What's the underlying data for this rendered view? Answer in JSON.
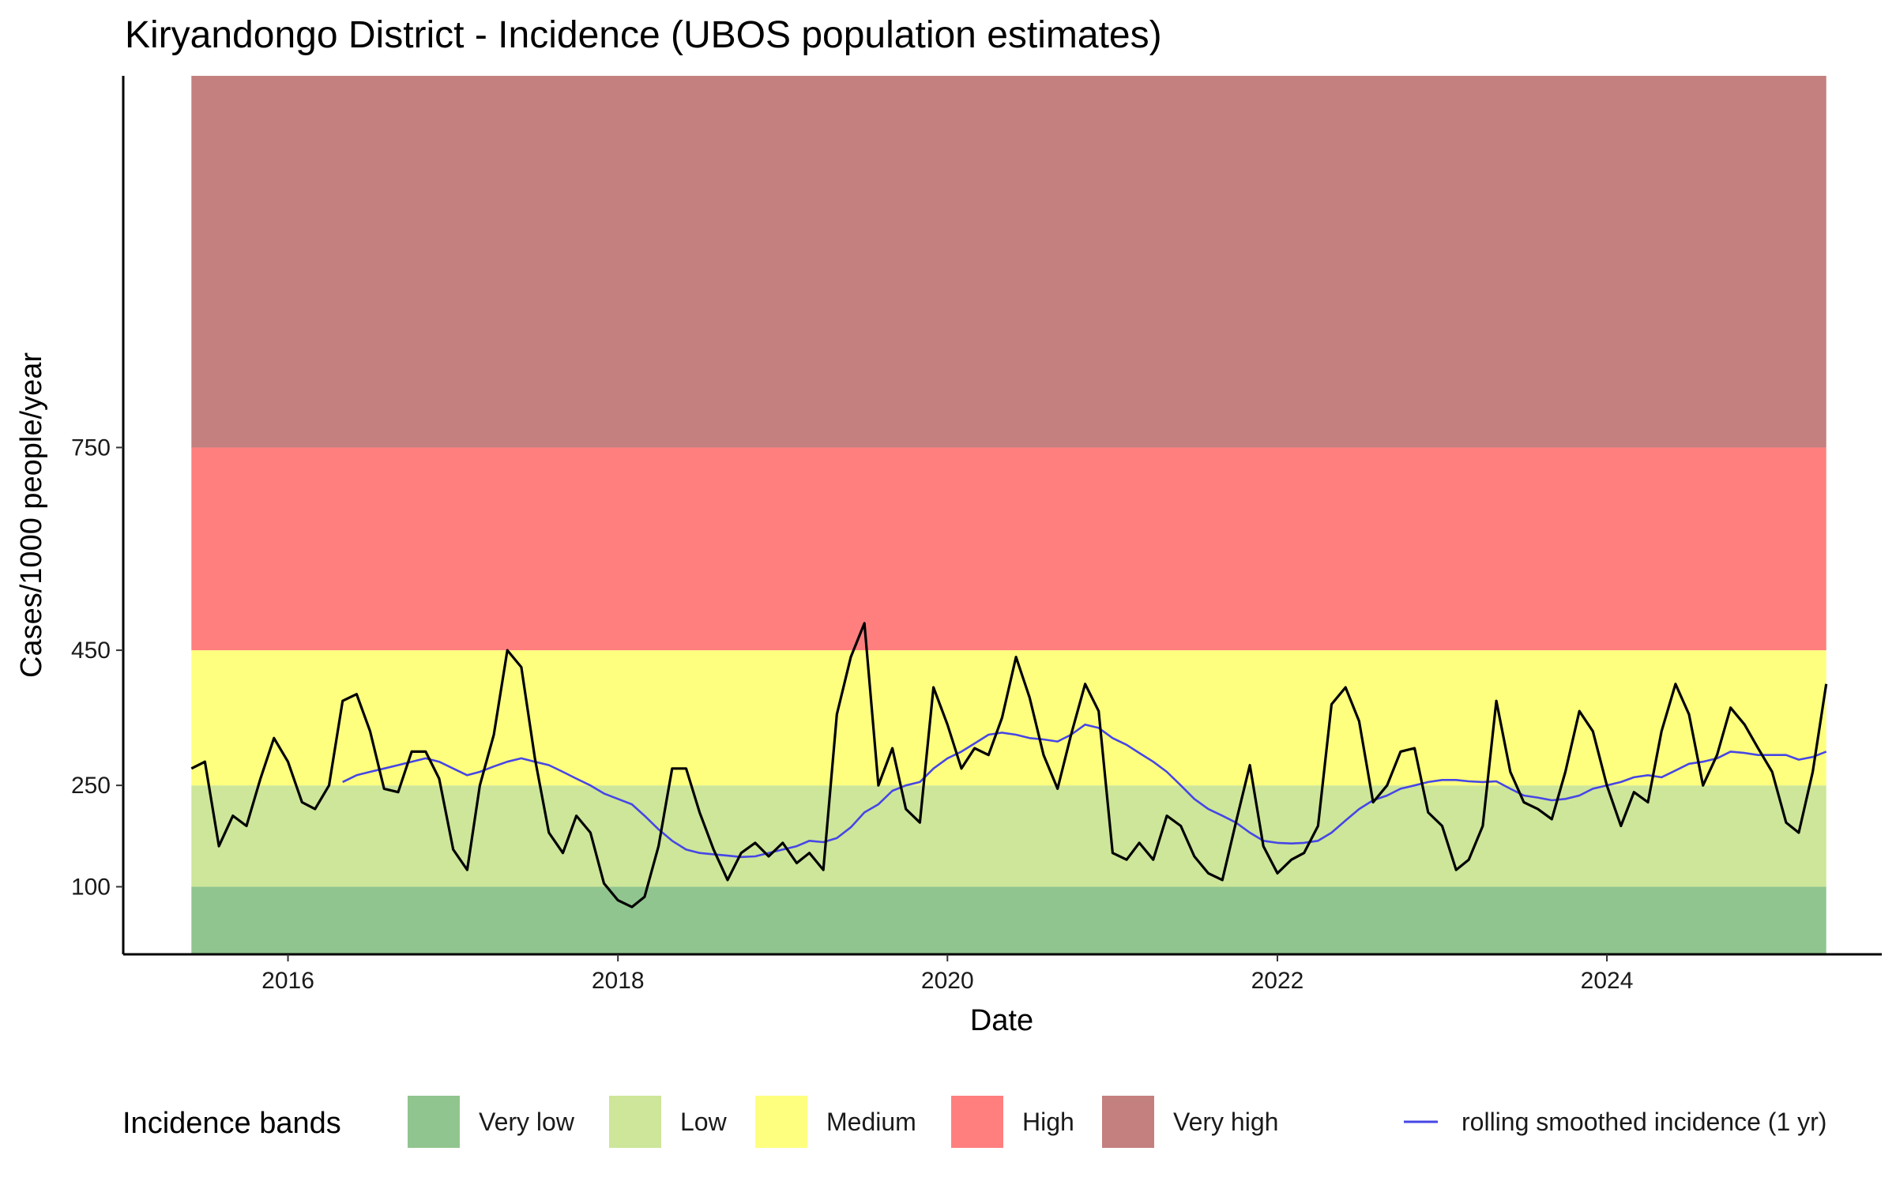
{
  "chart_data": {
    "type": "line",
    "title": "Kiryandongo District - Incidence (UBOS population estimates)",
    "xlabel": "Date",
    "ylabel": "Cases/1000 people/year",
    "xlim": [
      "2015-01-01",
      "2025-09-01"
    ],
    "ylim": [
      0,
      1300
    ],
    "x_ticks": [
      "2016",
      "2018",
      "2020",
      "2022",
      "2024"
    ],
    "y_ticks": [
      100,
      250,
      450,
      750
    ],
    "grid": false,
    "legend_position": "bottom",
    "legend_title": "Incidence bands",
    "band_range": [
      "2015-06-01",
      "2025-05-01"
    ],
    "bands": [
      {
        "name": "Very low",
        "from": 0,
        "to": 100,
        "color": "#91c58f"
      },
      {
        "name": "Low",
        "from": 100,
        "to": 250,
        "color": "#cde699"
      },
      {
        "name": "Medium",
        "from": 250,
        "to": 450,
        "color": "#ffff7f"
      },
      {
        "name": "High",
        "from": 450,
        "to": 750,
        "color": "#ff7f7f"
      },
      {
        "name": "Very high",
        "from": 750,
        "to": 1300,
        "color": "#c47f7f"
      }
    ],
    "series": [
      {
        "key": "monthly",
        "color": "#000000",
        "points": [
          [
            "2015-06",
            275
          ],
          [
            "2015-07",
            285
          ],
          [
            "2015-08",
            160
          ],
          [
            "2015-09",
            205
          ],
          [
            "2015-10",
            190
          ],
          [
            "2015-11",
            260
          ],
          [
            "2015-12",
            320
          ],
          [
            "2016-01",
            285
          ],
          [
            "2016-02",
            225
          ],
          [
            "2016-03",
            215
          ],
          [
            "2016-04",
            250
          ],
          [
            "2016-05",
            375
          ],
          [
            "2016-06",
            385
          ],
          [
            "2016-07",
            330
          ],
          [
            "2016-08",
            245
          ],
          [
            "2016-09",
            240
          ],
          [
            "2016-10",
            300
          ],
          [
            "2016-11",
            300
          ],
          [
            "2016-12",
            260
          ],
          [
            "2017-01",
            155
          ],
          [
            "2017-02",
            125
          ],
          [
            "2017-03",
            250
          ],
          [
            "2017-04",
            325
          ],
          [
            "2017-05",
            450
          ],
          [
            "2017-06",
            425
          ],
          [
            "2017-07",
            290
          ],
          [
            "2017-08",
            180
          ],
          [
            "2017-09",
            150
          ],
          [
            "2017-10",
            205
          ],
          [
            "2017-11",
            180
          ],
          [
            "2017-12",
            105
          ],
          [
            "2018-01",
            80
          ],
          [
            "2018-02",
            70
          ],
          [
            "2018-03",
            85
          ],
          [
            "2018-04",
            160
          ],
          [
            "2018-05",
            275
          ],
          [
            "2018-06",
            275
          ],
          [
            "2018-07",
            210
          ],
          [
            "2018-08",
            155
          ],
          [
            "2018-09",
            110
          ],
          [
            "2018-10",
            150
          ],
          [
            "2018-11",
            165
          ],
          [
            "2018-12",
            145
          ],
          [
            "2019-01",
            165
          ],
          [
            "2019-02",
            135
          ],
          [
            "2019-03",
            150
          ],
          [
            "2019-04",
            125
          ],
          [
            "2019-05",
            355
          ],
          [
            "2019-06",
            440
          ],
          [
            "2019-07",
            490
          ],
          [
            "2019-08",
            250
          ],
          [
            "2019-09",
            305
          ],
          [
            "2019-10",
            215
          ],
          [
            "2019-11",
            195
          ],
          [
            "2019-12",
            395
          ],
          [
            "2020-01",
            340
          ],
          [
            "2020-02",
            275
          ],
          [
            "2020-03",
            305
          ],
          [
            "2020-04",
            295
          ],
          [
            "2020-05",
            350
          ],
          [
            "2020-06",
            440
          ],
          [
            "2020-07",
            380
          ],
          [
            "2020-08",
            295
          ],
          [
            "2020-09",
            245
          ],
          [
            "2020-10",
            325
          ],
          [
            "2020-11",
            400
          ],
          [
            "2020-12",
            360
          ],
          [
            "2021-01",
            150
          ],
          [
            "2021-02",
            140
          ],
          [
            "2021-03",
            165
          ],
          [
            "2021-04",
            140
          ],
          [
            "2021-05",
            205
          ],
          [
            "2021-06",
            190
          ],
          [
            "2021-07",
            145
          ],
          [
            "2021-08",
            120
          ],
          [
            "2021-09",
            110
          ],
          [
            "2021-10",
            195
          ],
          [
            "2021-11",
            280
          ],
          [
            "2021-12",
            160
          ],
          [
            "2022-01",
            120
          ],
          [
            "2022-02",
            140
          ],
          [
            "2022-03",
            150
          ],
          [
            "2022-04",
            190
          ],
          [
            "2022-05",
            370
          ],
          [
            "2022-06",
            395
          ],
          [
            "2022-07",
            345
          ],
          [
            "2022-08",
            225
          ],
          [
            "2022-09",
            250
          ],
          [
            "2022-10",
            300
          ],
          [
            "2022-11",
            305
          ],
          [
            "2022-12",
            210
          ],
          [
            "2023-01",
            190
          ],
          [
            "2023-02",
            125
          ],
          [
            "2023-03",
            140
          ],
          [
            "2023-04",
            190
          ],
          [
            "2023-05",
            375
          ],
          [
            "2023-06",
            270
          ],
          [
            "2023-07",
            225
          ],
          [
            "2023-08",
            215
          ],
          [
            "2023-09",
            200
          ],
          [
            "2023-10",
            270
          ],
          [
            "2023-11",
            360
          ],
          [
            "2023-12",
            330
          ],
          [
            "2024-01",
            250
          ],
          [
            "2024-02",
            190
          ],
          [
            "2024-03",
            240
          ],
          [
            "2024-04",
            225
          ],
          [
            "2024-05",
            330
          ],
          [
            "2024-06",
            400
          ],
          [
            "2024-07",
            355
          ],
          [
            "2024-08",
            250
          ],
          [
            "2024-09",
            295
          ],
          [
            "2024-10",
            365
          ],
          [
            "2024-11",
            340
          ],
          [
            "2024-12",
            305
          ],
          [
            "2025-01",
            270
          ],
          [
            "2025-02",
            195
          ],
          [
            "2025-03",
            180
          ],
          [
            "2025-04",
            270
          ],
          [
            "2025-05",
            400
          ]
        ]
      },
      {
        "key": "rolling",
        "name": "rolling smoothed incidence (1 yr)",
        "color": "#4646e6",
        "points": [
          [
            "2016-05",
            255
          ],
          [
            "2016-06",
            265
          ],
          [
            "2016-07",
            270
          ],
          [
            "2016-08",
            275
          ],
          [
            "2016-09",
            280
          ],
          [
            "2016-10",
            285
          ],
          [
            "2016-11",
            290
          ],
          [
            "2016-12",
            285
          ],
          [
            "2017-01",
            275
          ],
          [
            "2017-02",
            265
          ],
          [
            "2017-03",
            270
          ],
          [
            "2017-04",
            278
          ],
          [
            "2017-05",
            285
          ],
          [
            "2017-06",
            290
          ],
          [
            "2017-07",
            285
          ],
          [
            "2017-08",
            280
          ],
          [
            "2017-09",
            270
          ],
          [
            "2017-10",
            260
          ],
          [
            "2017-11",
            250
          ],
          [
            "2017-12",
            238
          ],
          [
            "2018-01",
            230
          ],
          [
            "2018-02",
            222
          ],
          [
            "2018-03",
            205
          ],
          [
            "2018-04",
            185
          ],
          [
            "2018-05",
            168
          ],
          [
            "2018-06",
            155
          ],
          [
            "2018-07",
            150
          ],
          [
            "2018-08",
            148
          ],
          [
            "2018-09",
            146
          ],
          [
            "2018-10",
            144
          ],
          [
            "2018-11",
            145
          ],
          [
            "2018-12",
            150
          ],
          [
            "2019-01",
            155
          ],
          [
            "2019-02",
            160
          ],
          [
            "2019-03",
            168
          ],
          [
            "2019-04",
            166
          ],
          [
            "2019-05",
            172
          ],
          [
            "2019-06",
            188
          ],
          [
            "2019-07",
            210
          ],
          [
            "2019-08",
            222
          ],
          [
            "2019-09",
            242
          ],
          [
            "2019-10",
            250
          ],
          [
            "2019-11",
            255
          ],
          [
            "2019-12",
            275
          ],
          [
            "2020-01",
            290
          ],
          [
            "2020-02",
            300
          ],
          [
            "2020-03",
            312
          ],
          [
            "2020-04",
            325
          ],
          [
            "2020-05",
            328
          ],
          [
            "2020-06",
            325
          ],
          [
            "2020-07",
            320
          ],
          [
            "2020-08",
            318
          ],
          [
            "2020-09",
            315
          ],
          [
            "2020-10",
            325
          ],
          [
            "2020-11",
            340
          ],
          [
            "2020-12",
            335
          ],
          [
            "2021-01",
            320
          ],
          [
            "2021-02",
            310
          ],
          [
            "2021-03",
            298
          ],
          [
            "2021-04",
            285
          ],
          [
            "2021-05",
            270
          ],
          [
            "2021-06",
            250
          ],
          [
            "2021-07",
            230
          ],
          [
            "2021-08",
            215
          ],
          [
            "2021-09",
            205
          ],
          [
            "2021-10",
            195
          ],
          [
            "2021-11",
            180
          ],
          [
            "2021-12",
            168
          ],
          [
            "2022-01",
            165
          ],
          [
            "2022-02",
            164
          ],
          [
            "2022-03",
            165
          ],
          [
            "2022-04",
            168
          ],
          [
            "2022-05",
            180
          ],
          [
            "2022-06",
            198
          ],
          [
            "2022-07",
            215
          ],
          [
            "2022-08",
            228
          ],
          [
            "2022-09",
            235
          ],
          [
            "2022-10",
            245
          ],
          [
            "2022-11",
            250
          ],
          [
            "2022-12",
            255
          ],
          [
            "2023-01",
            258
          ],
          [
            "2023-02",
            258
          ],
          [
            "2023-03",
            256
          ],
          [
            "2023-04",
            255
          ],
          [
            "2023-05",
            256
          ],
          [
            "2023-06",
            245
          ],
          [
            "2023-07",
            235
          ],
          [
            "2023-08",
            232
          ],
          [
            "2023-09",
            228
          ],
          [
            "2023-10",
            230
          ],
          [
            "2023-11",
            235
          ],
          [
            "2023-12",
            245
          ],
          [
            "2024-01",
            250
          ],
          [
            "2024-02",
            255
          ],
          [
            "2024-03",
            262
          ],
          [
            "2024-04",
            265
          ],
          [
            "2024-05",
            262
          ],
          [
            "2024-06",
            272
          ],
          [
            "2024-07",
            282
          ],
          [
            "2024-08",
            285
          ],
          [
            "2024-09",
            290
          ],
          [
            "2024-10",
            300
          ],
          [
            "2024-11",
            298
          ],
          [
            "2024-12",
            295
          ],
          [
            "2025-01",
            295
          ],
          [
            "2025-02",
            295
          ],
          [
            "2025-03",
            288
          ],
          [
            "2025-04",
            292
          ],
          [
            "2025-05",
            300
          ]
        ]
      }
    ]
  }
}
